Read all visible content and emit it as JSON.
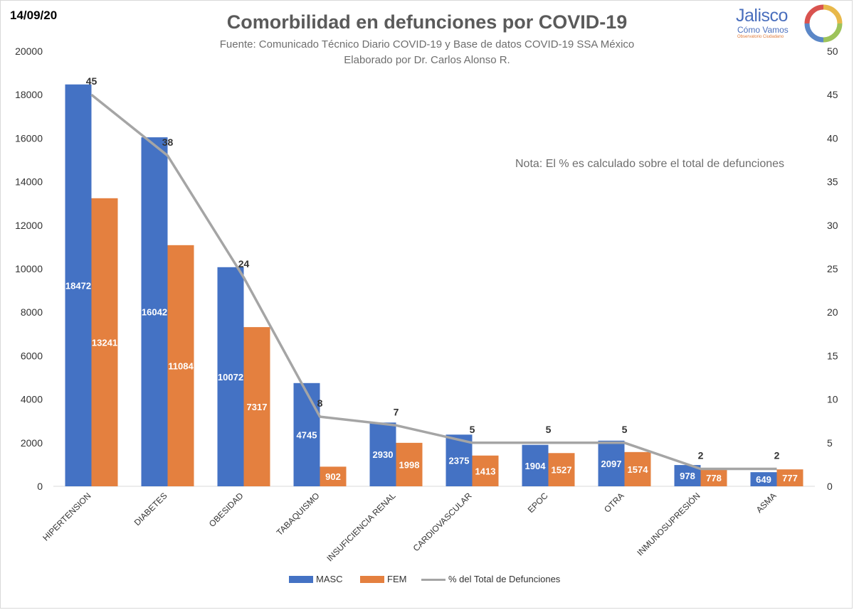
{
  "header": {
    "date": "14/09/20",
    "title": "Comorbilidad en defunciones por COVID-19",
    "subtitle1": "Fuente: Comunicado Técnico Diario COVID-19 y Base de datos COVID-19 SSA México",
    "subtitle2": "Elaborado por Dr. Carlos Alonso R.",
    "note": "Nota: El % es calculado sobre el total de defunciones"
  },
  "logo": {
    "name": "Jalisco",
    "sub": "Cómo Vamos",
    "tag": "Observatorio Ciudadano"
  },
  "colors": {
    "masc": "#4472c4",
    "fem": "#e4803f",
    "line": "#a5a5a5",
    "axis_text": "#333333",
    "title": "#5a5a5a"
  },
  "chart_data": {
    "type": "bar",
    "title": "Comorbilidad en defunciones por COVID-19",
    "categories": [
      "HIPERTENSION",
      "DIABETES",
      "OBESIDAD",
      "TABAQUISMO",
      "INSUFICIENCIA RENAL",
      "CARDIOVASCULAR",
      "EPOC",
      "OTRA",
      "INMUNOSUPRESIÓN",
      "ASMA"
    ],
    "series": [
      {
        "name": "MASC",
        "type": "bar",
        "axis": "left",
        "values": [
          18472,
          16042,
          10072,
          4745,
          2930,
          2375,
          1904,
          2097,
          978,
          649
        ]
      },
      {
        "name": "FEM",
        "type": "bar",
        "axis": "left",
        "values": [
          13241,
          11084,
          7317,
          902,
          1998,
          1413,
          1527,
          1574,
          778,
          777
        ]
      },
      {
        "name": "% del Total de Defunciones",
        "type": "line",
        "axis": "right",
        "values": [
          45,
          38,
          24,
          8,
          7,
          5,
          5,
          5,
          2,
          2
        ]
      }
    ],
    "ylim_left": [
      0,
      20000
    ],
    "yticks_left": [
      0,
      2000,
      4000,
      6000,
      8000,
      10000,
      12000,
      14000,
      16000,
      18000,
      20000
    ],
    "ylim_right": [
      0,
      50
    ],
    "yticks_right": [
      0,
      5,
      10,
      15,
      20,
      25,
      30,
      35,
      40,
      45,
      50
    ],
    "grid": false,
    "legend": "bottom"
  }
}
